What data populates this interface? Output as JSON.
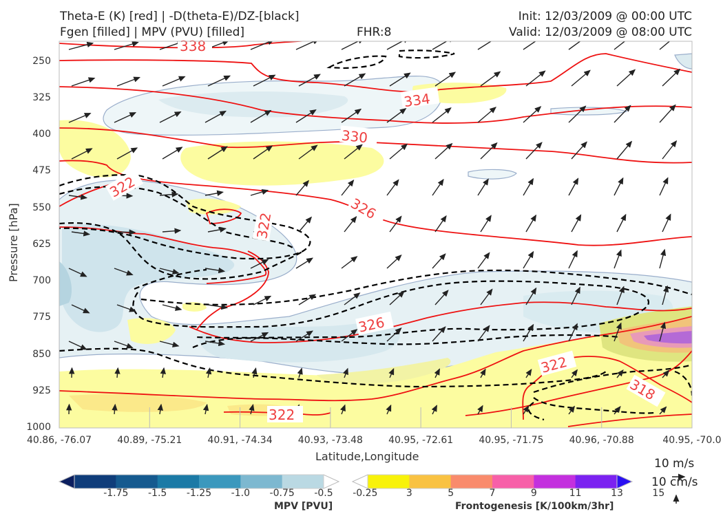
{
  "header": {
    "title_left_1": "Theta-E (K) [red] | -D(theta-E)/DZ-[black]",
    "title_left_2": "Fgen [filled] | MPV (PVU) [filled]",
    "fhr": "FHR:8",
    "init": "Init: 12/03/2009 @ 00:00 UTC",
    "valid": "Valid: 12/03/2009 @ 08:00 UTC"
  },
  "chart_data": {
    "type": "cross-section",
    "ylabel": "Pressure [hPa]",
    "xlabel": "Latitude,Longitude",
    "y_ticks": [
      "250",
      "325",
      "400",
      "475",
      "550",
      "625",
      "700",
      "775",
      "850",
      "925",
      "1000"
    ],
    "ylim": [
      1000,
      200
    ],
    "y_scale": "inverted-linear",
    "x_ticks": [
      "40.86, -76.07",
      "40.89, -75.21",
      "40.91, -74.34",
      "40.93, -73.48",
      "40.95, -72.61",
      "40.95, -71.75",
      "40.96, -70.88",
      "40.95, -70.0"
    ],
    "theta_e_contour_labels": [
      "338",
      "334",
      "330",
      "326",
      "322",
      "322",
      "326",
      "322",
      "318",
      "322"
    ],
    "series": [
      {
        "name": "Theta-E (K)",
        "color": "#ee1111",
        "style": "solid"
      },
      {
        "name": "-D(theta-E)/DZ",
        "color": "#000000",
        "style": "dashed"
      },
      {
        "name": "Fgen",
        "style": "filled"
      },
      {
        "name": "MPV (PVU)",
        "style": "filled"
      }
    ],
    "mpv_colorbar": {
      "label": "MPV [PVU]",
      "levels": [
        "-1.75",
        "-1.5",
        "-1.25",
        "-1.0",
        "-0.75",
        "-0.5",
        "-0.25"
      ],
      "colors": [
        "#0b1f5f",
        "#0f3d7a",
        "#155a8f",
        "#1b7aa6",
        "#3b98bd",
        "#7db8d0",
        "#bad9e3",
        "#ffffff"
      ]
    },
    "fgen_colorbar": {
      "label": "Frontogenesis [K/100km/3hr]",
      "levels": [
        "3",
        "5",
        "7",
        "9",
        "11",
        "13",
        "15"
      ],
      "colors": [
        "#ffffff",
        "#f8f20a",
        "#f9c242",
        "#f98b6c",
        "#f760a8",
        "#c330de",
        "#7b22f0",
        "#2a10f2"
      ]
    },
    "wind_key": {
      "horizontal": "10 m/s",
      "vertical": "10 cm/s"
    }
  }
}
